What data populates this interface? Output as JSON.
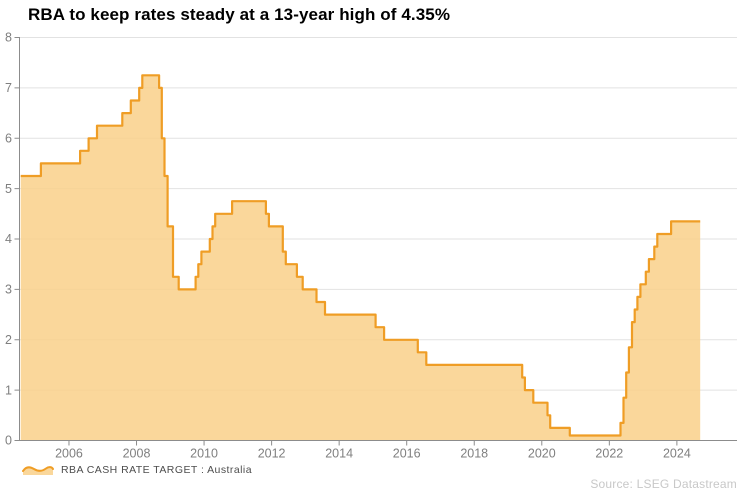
{
  "legend": {
    "icon": "area-squiggle-icon"
  },
  "footer": {
    "source": "Source: LSEG Datastream"
  },
  "chart_data": {
    "type": "area",
    "title": "RBA to keep rates steady at a 13-year high of 4.35%",
    "xlabel": "",
    "ylabel": "",
    "xlim": [
      2004.55,
      2025.78
    ],
    "ylim": [
      0,
      8
    ],
    "xticks": [
      2006,
      2008,
      2010,
      2012,
      2014,
      2016,
      2018,
      2020,
      2022,
      2024
    ],
    "yticks": [
      0,
      1,
      2,
      3,
      4,
      5,
      6,
      7,
      8
    ],
    "grid": "horizontal",
    "legend_position": "bottom-left",
    "step_style": "step-after",
    "series": [
      {
        "name": "RBA CASH RATE TARGET : Australia",
        "points": [
          [
            2004.57,
            5.25
          ],
          [
            2005.17,
            5.5
          ],
          [
            2006.33,
            5.75
          ],
          [
            2006.58,
            6.0
          ],
          [
            2006.83,
            6.25
          ],
          [
            2007.58,
            6.5
          ],
          [
            2007.83,
            6.75
          ],
          [
            2008.08,
            7.0
          ],
          [
            2008.17,
            7.25
          ],
          [
            2008.67,
            7.0
          ],
          [
            2008.75,
            6.0
          ],
          [
            2008.83,
            5.25
          ],
          [
            2008.92,
            4.25
          ],
          [
            2009.08,
            3.25
          ],
          [
            2009.25,
            3.0
          ],
          [
            2009.75,
            3.25
          ],
          [
            2009.83,
            3.5
          ],
          [
            2009.92,
            3.75
          ],
          [
            2010.17,
            4.0
          ],
          [
            2010.25,
            4.25
          ],
          [
            2010.33,
            4.5
          ],
          [
            2010.83,
            4.75
          ],
          [
            2011.83,
            4.5
          ],
          [
            2011.92,
            4.25
          ],
          [
            2012.33,
            3.75
          ],
          [
            2012.42,
            3.5
          ],
          [
            2012.75,
            3.25
          ],
          [
            2012.92,
            3.0
          ],
          [
            2013.33,
            2.75
          ],
          [
            2013.58,
            2.5
          ],
          [
            2015.08,
            2.25
          ],
          [
            2015.33,
            2.0
          ],
          [
            2016.33,
            1.75
          ],
          [
            2016.58,
            1.5
          ],
          [
            2019.42,
            1.25
          ],
          [
            2019.5,
            1.0
          ],
          [
            2019.75,
            0.75
          ],
          [
            2020.17,
            0.5
          ],
          [
            2020.25,
            0.25
          ],
          [
            2020.83,
            0.1
          ],
          [
            2022.33,
            0.35
          ],
          [
            2022.42,
            0.85
          ],
          [
            2022.5,
            1.35
          ],
          [
            2022.58,
            1.85
          ],
          [
            2022.67,
            2.35
          ],
          [
            2022.75,
            2.6
          ],
          [
            2022.83,
            2.85
          ],
          [
            2022.92,
            3.1
          ],
          [
            2023.08,
            3.35
          ],
          [
            2023.17,
            3.6
          ],
          [
            2023.33,
            3.85
          ],
          [
            2023.42,
            4.1
          ],
          [
            2023.83,
            4.35
          ],
          [
            2024.69,
            4.35
          ]
        ]
      }
    ],
    "colors": {
      "line": "#EF9D25",
      "fill_rgba": "rgba(249,208,138,0.85)",
      "grid": "#E2E2E2",
      "axis": "#8C8C8C",
      "tick_label": "#7F7F7F",
      "title_text": "#000000",
      "legend_text": "#4D4D4D",
      "source_text": "#C8C8C8"
    }
  }
}
